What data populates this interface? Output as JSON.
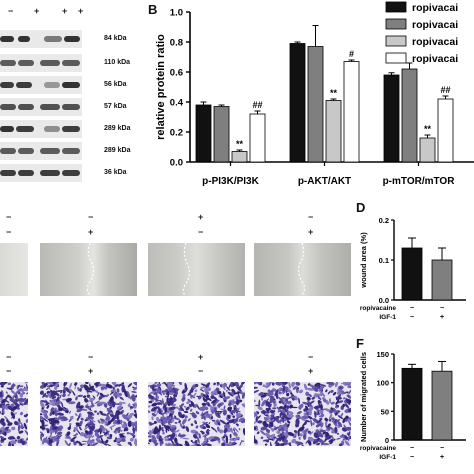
{
  "panel_letters": {
    "B": "B",
    "D": "D",
    "F": "F"
  },
  "blot_treatment_marks": [
    "−",
    "+",
    "+",
    "+"
  ],
  "blot_kda": [
    "84 kDa",
    "110 kDa",
    "56 kDa",
    "57 kDa",
    "289 kDa",
    "289 kDa",
    "36 kDa"
  ],
  "wound_marks_row1": [
    "−",
    "−",
    "+",
    "−"
  ],
  "wound_marks_row2": [
    "−",
    "+",
    "−",
    "+"
  ],
  "transwell_marks_row1": [
    "−",
    "−",
    "+",
    "−"
  ],
  "transwell_marks_row2": [
    "−",
    "+",
    "−",
    "+"
  ],
  "colors": {
    "black": "#111111",
    "dark_gray": "#7f7f7f",
    "light_gray": "#c8c8c8",
    "white": "#ffffff",
    "membrane": "#ededed",
    "band": "#2a2a2a",
    "stain": "#5a4a9a"
  },
  "chart_data": [
    {
      "type": "bar",
      "panel": "B",
      "ylabel": "relative protein ratio",
      "ylim": [
        0,
        1.0
      ],
      "yticks": [
        "0.0",
        "0.2",
        "0.4",
        "0.6",
        "0.8",
        "1.0"
      ],
      "categories": [
        "p-PI3K/PI3K",
        "p-AKT/AKT",
        "p-mTOR/mTOR"
      ],
      "series": [
        {
          "name": "ropivacai",
          "color": "#111111",
          "values": [
            0.38,
            0.79,
            0.58
          ],
          "errors": [
            0.02,
            0.01,
            0.015
          ]
        },
        {
          "name": "ropivacai",
          "color": "#7f7f7f",
          "values": [
            0.37,
            0.77,
            0.62
          ],
          "errors": [
            0.01,
            0.14,
            0.04
          ]
        },
        {
          "name": "ropivacai",
          "color": "#c8c8c8",
          "values": [
            0.07,
            0.41,
            0.16
          ],
          "errors": [
            0.01,
            0.01,
            0.02
          ]
        },
        {
          "name": "ropivacai",
          "color": "#ffffff",
          "values": [
            0.32,
            0.67,
            0.42
          ],
          "errors": [
            0.02,
            0.01,
            0.02
          ]
        }
      ],
      "annotations": [
        {
          "category": 0,
          "series": 2,
          "text": "**"
        },
        {
          "category": 0,
          "series": 3,
          "text": "##"
        },
        {
          "category": 1,
          "series": 2,
          "text": "**"
        },
        {
          "category": 1,
          "series": 3,
          "text": "#"
        },
        {
          "category": 2,
          "series": 2,
          "text": "**"
        },
        {
          "category": 2,
          "series": 3,
          "text": "##"
        }
      ]
    },
    {
      "type": "bar",
      "panel": "D",
      "ylabel": "wound area (%)",
      "ylim": [
        0,
        0.2
      ],
      "yticks": [
        "0.0",
        "0.1",
        "0.2"
      ],
      "series": [
        {
          "values": [
            0.13,
            0.1
          ],
          "errors": [
            0.025,
            0.03
          ],
          "colors": [
            "#111111",
            "#7f7f7f"
          ]
        }
      ],
      "row_labels": [
        "ropivacaine",
        "IGF-1"
      ],
      "row_marks": [
        [
          "−",
          "−"
        ],
        [
          "−",
          "+"
        ]
      ]
    },
    {
      "type": "bar",
      "panel": "F",
      "ylabel": "Number of migrated cells",
      "ylim": [
        0,
        150
      ],
      "yticks": [
        "0",
        "50",
        "100",
        "150"
      ],
      "series": [
        {
          "values": [
            125,
            120
          ],
          "errors": [
            7,
            17
          ],
          "colors": [
            "#111111",
            "#7f7f7f"
          ]
        }
      ],
      "row_labels": [
        "ropivacaine",
        "IGF-1"
      ],
      "row_marks": [
        [
          "−",
          "−"
        ],
        [
          "−",
          "+"
        ]
      ]
    }
  ]
}
